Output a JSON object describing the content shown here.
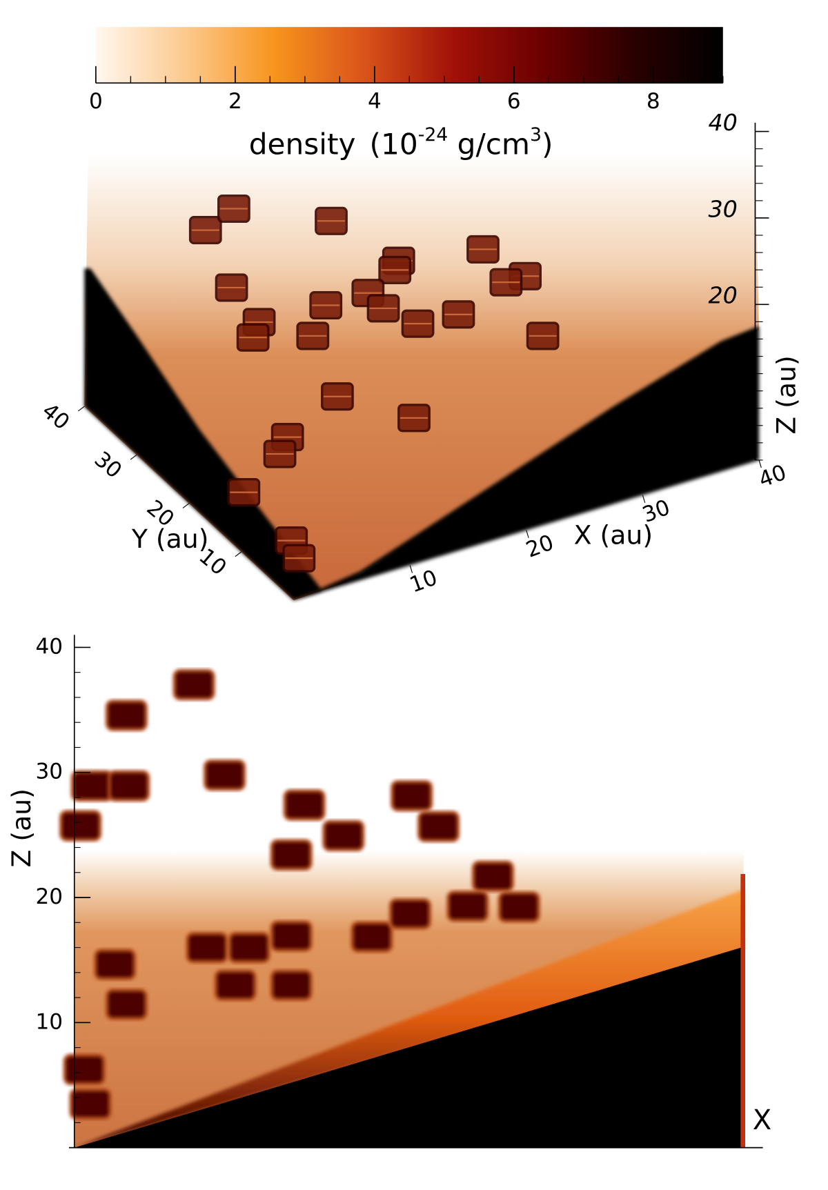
{
  "chart_data": [
    {
      "type": "colorbar",
      "title_parts": [
        "density",
        "(10",
        "-24",
        " g/cm",
        "3",
        ")"
      ],
      "xlim": [
        0,
        9
      ],
      "xticks": [
        0,
        2,
        4,
        6,
        8
      ],
      "minor_tick_step": 0.5,
      "colors": [
        "#fff8f0",
        "#fcc98e",
        "#f7941d",
        "#d9531a",
        "#a01008",
        "#6b0000",
        "#2a0000",
        "#000000"
      ]
    },
    {
      "type": "volume3d",
      "xlabel": "X (au)",
      "ylabel": "Y (au)",
      "zlabel": "Z (au)",
      "xlim": [
        0,
        40
      ],
      "xticks": [
        10,
        20,
        30,
        40
      ],
      "ylim": [
        0,
        40
      ],
      "yticks": [
        10,
        20,
        30,
        40
      ],
      "zlim": [
        2,
        41
      ],
      "zticks": [
        20,
        30,
        40
      ],
      "minor_tick_step": 2
    },
    {
      "type": "slice",
      "xlabel": "X",
      "ylabel": "Z (au)",
      "ylim": [
        0,
        41
      ],
      "yticks": [
        10,
        20,
        30,
        40
      ],
      "minor_tick_step": 2
    }
  ]
}
